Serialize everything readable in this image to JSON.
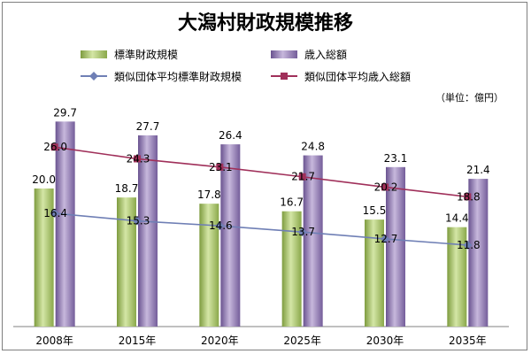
{
  "chart_data": {
    "type": "bar",
    "title": "大潟村財政規模推移",
    "unit_label": "（単位：億円）",
    "categories": [
      "2008年",
      "2015年",
      "2020年",
      "2025年",
      "2030年",
      "2035年"
    ],
    "series": [
      {
        "name": "標準財政規模",
        "kind": "bar",
        "values": [
          20.0,
          18.7,
          17.8,
          16.7,
          15.5,
          14.4
        ],
        "labels": [
          "20.0",
          "18.7",
          "17.8",
          "16.7",
          "15.5",
          "14.4"
        ],
        "color": "#9bbb59"
      },
      {
        "name": "歳入総額",
        "kind": "bar",
        "values": [
          29.7,
          27.7,
          26.4,
          24.8,
          23.1,
          21.4
        ],
        "labels": [
          "29.7",
          "27.7",
          "26.4",
          "24.8",
          "23.1",
          "21.4"
        ],
        "color": "#8064a2"
      },
      {
        "name": "類似団体平均標準財政規模",
        "kind": "line",
        "values": [
          16.4,
          15.3,
          14.6,
          13.7,
          12.7,
          11.8
        ],
        "labels": [
          "16.4",
          "15.3",
          "14.6",
          "13.7",
          "12.7",
          "11.8"
        ],
        "color": "#6f7fb5"
      },
      {
        "name": "類似団体平均歳入総額",
        "kind": "line",
        "values": [
          26.0,
          24.3,
          23.1,
          21.7,
          20.2,
          18.8
        ],
        "labels": [
          "26.0",
          "24.3",
          "23.1",
          "21.7",
          "20.2",
          "18.8"
        ],
        "color": "#a0305a"
      }
    ],
    "ylim": [
      0,
      40
    ],
    "grid": false,
    "legend": "top"
  }
}
